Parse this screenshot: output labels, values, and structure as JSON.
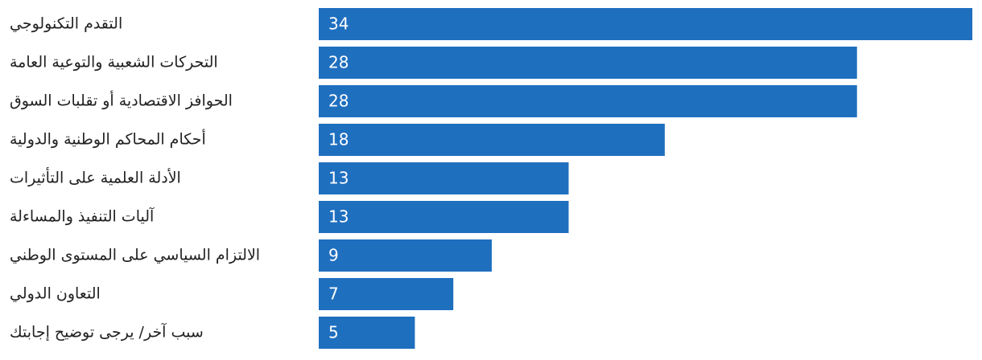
{
  "chart_data": {
    "type": "bar",
    "orientation": "horizontal",
    "categories": [
      "التقدم التكنولوجي",
      "التحركات الشعبية والتوعية العامة",
      "الحوافز الاقتصادية أو تقلبات السوق",
      "أحكام المحاكم الوطنية والدولية",
      "الأدلة العلمية على التأثيرات",
      "آليات التنفيذ والمساءلة",
      "الالتزام السياسي على المستوى الوطني",
      "التعاون الدولي",
      "سبب آخر/ يرجى توضيح إجابتك"
    ],
    "values": [
      34,
      28,
      28,
      18,
      13,
      13,
      9,
      7,
      5
    ],
    "color": "#1f6fbf"
  }
}
